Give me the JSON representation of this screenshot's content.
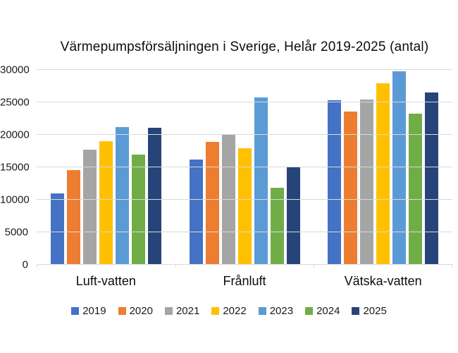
{
  "chart_data": {
    "type": "bar",
    "title": "Värmepumpsförsäljningen i Sverige, Helår 2019-2025 (antal)",
    "xlabel": "",
    "ylabel": "",
    "categories": [
      "Luft-vatten",
      "Frånluft",
      "Vätska-vatten"
    ],
    "series": [
      {
        "name": "2019",
        "color": "#4472C4",
        "values": [
          11000,
          16200,
          25300
        ]
      },
      {
        "name": "2020",
        "color": "#ED7D31",
        "values": [
          14600,
          18900,
          23600
        ]
      },
      {
        "name": "2021",
        "color": "#A5A5A5",
        "values": [
          17700,
          20100,
          25400
        ]
      },
      {
        "name": "2022",
        "color": "#FFC000",
        "values": [
          19000,
          17900,
          27900
        ]
      },
      {
        "name": "2023",
        "color": "#5B9BD5",
        "values": [
          21200,
          25800,
          29800
        ]
      },
      {
        "name": "2024",
        "color": "#70AD47",
        "values": [
          17000,
          11800,
          23300
        ]
      },
      {
        "name": "2025",
        "color": "#264478",
        "values": [
          21100,
          15100,
          26500
        ]
      }
    ],
    "ylim": [
      0,
      30000
    ],
    "ytick_step": 5000,
    "ytick_labels": [
      "0",
      "5000",
      "10000",
      "15000",
      "20000",
      "25000",
      "30000"
    ],
    "grid": true,
    "gridline_color": "#D9D9D9",
    "legend_position": "bottom"
  }
}
